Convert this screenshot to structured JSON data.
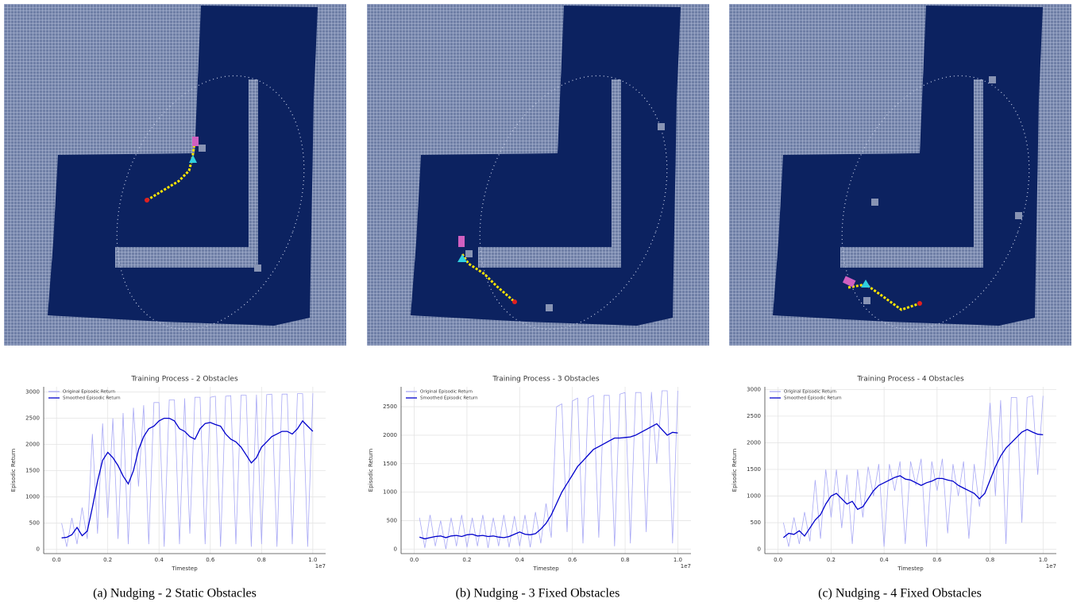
{
  "chart_data": [
    {
      "type": "line",
      "title": "Training Process - 2 Obstacles",
      "xlabel": "Timestep",
      "ylabel": "Episodic Return",
      "x_offset": "1e7",
      "caption": "(a) Nudging - 2 Static Obstacles",
      "legend": "upper left",
      "grid": true,
      "xlim": [
        -0.05,
        1.05
      ],
      "xticks": [
        {
          "value": 0,
          "label": "0.0"
        },
        0.2,
        0.4,
        0.6,
        0.8,
        {
          "value": 1,
          "label": "1.0"
        }
      ],
      "ylim": [
        -80,
        3100
      ],
      "yticks": [
        0,
        500,
        1000,
        1500,
        2000,
        2500,
        3000
      ],
      "x": [
        0.02,
        0.04,
        0.06,
        0.08,
        0.1,
        0.12,
        0.14,
        0.16,
        0.18,
        0.2,
        0.22,
        0.24,
        0.26,
        0.28,
        0.3,
        0.32,
        0.34,
        0.36,
        0.38,
        0.4,
        0.42,
        0.44,
        0.46,
        0.48,
        0.5,
        0.52,
        0.54,
        0.56,
        0.58,
        0.6,
        0.62,
        0.64,
        0.66,
        0.68,
        0.7,
        0.72,
        0.74,
        0.76,
        0.78,
        0.8,
        0.82,
        0.84,
        0.86,
        0.88,
        0.9,
        0.92,
        0.94,
        0.96,
        0.98,
        1.0
      ],
      "series": [
        {
          "name": "Original Episodic Return",
          "color": "#a9a9f5",
          "values": [
            500,
            50,
            600,
            100,
            800,
            200,
            2200,
            300,
            2400,
            600,
            2500,
            200,
            2600,
            100,
            2700,
            1200,
            2750,
            100,
            2800,
            2800,
            50,
            2850,
            2850,
            100,
            2880,
            300,
            2900,
            2900,
            100,
            2900,
            2920,
            50,
            2920,
            2930,
            100,
            2940,
            2940,
            50,
            2950,
            100,
            2950,
            2960,
            50,
            2960,
            2960,
            100,
            2970,
            2970,
            50,
            2980
          ]
        },
        {
          "name": "Smoothed Episodic Return",
          "color": "#0000cc",
          "values": [
            220,
            230,
            280,
            420,
            260,
            350,
            800,
            1300,
            1700,
            1850,
            1750,
            1600,
            1400,
            1250,
            1500,
            1900,
            2150,
            2300,
            2350,
            2450,
            2500,
            2500,
            2450,
            2300,
            2250,
            2150,
            2100,
            2300,
            2400,
            2420,
            2380,
            2350,
            2200,
            2100,
            2050,
            1950,
            1800,
            1650,
            1750,
            1950,
            2050,
            2150,
            2200,
            2250,
            2250,
            2200,
            2300,
            2450,
            2350,
            2250
          ]
        }
      ]
    },
    {
      "type": "line",
      "title": "Training Process - 3 Obstacles",
      "xlabel": "Timestep",
      "ylabel": "Episodic Return",
      "x_offset": "1e7",
      "caption": "(b) Nudging - 3 Fixed Obstacles",
      "legend": "upper left",
      "grid": true,
      "xlim": [
        -0.05,
        1.05
      ],
      "xticks": [
        {
          "value": 0,
          "label": "0.0"
        },
        0.2,
        0.4,
        0.6,
        0.8,
        {
          "value": 1,
          "label": "1.0"
        }
      ],
      "ylim": [
        -80,
        2850
      ],
      "yticks": [
        0,
        500,
        1000,
        1500,
        2000,
        2500
      ],
      "x": [
        0.02,
        0.04,
        0.06,
        0.08,
        0.1,
        0.12,
        0.14,
        0.16,
        0.18,
        0.2,
        0.22,
        0.24,
        0.26,
        0.28,
        0.3,
        0.32,
        0.34,
        0.36,
        0.38,
        0.4,
        0.42,
        0.44,
        0.46,
        0.48,
        0.5,
        0.52,
        0.54,
        0.56,
        0.58,
        0.6,
        0.62,
        0.64,
        0.66,
        0.68,
        0.7,
        0.72,
        0.74,
        0.76,
        0.78,
        0.8,
        0.82,
        0.84,
        0.86,
        0.88,
        0.9,
        0.92,
        0.94,
        0.96,
        0.98,
        1.0
      ],
      "series": [
        {
          "name": "Original Episodic Return",
          "color": "#a9a9f5",
          "values": [
            550,
            20,
            600,
            50,
            500,
            0,
            550,
            50,
            600,
            30,
            550,
            50,
            600,
            20,
            550,
            50,
            600,
            30,
            580,
            50,
            600,
            30,
            650,
            100,
            800,
            200,
            2500,
            2550,
            300,
            2600,
            2650,
            100,
            2650,
            2700,
            200,
            2700,
            2700,
            50,
            2720,
            2750,
            100,
            2750,
            2750,
            300,
            2760,
            1500,
            2780,
            2780,
            100,
            2780
          ]
        },
        {
          "name": "Smoothed Episodic Return",
          "color": "#0000cc",
          "values": [
            210,
            180,
            200,
            220,
            230,
            200,
            230,
            240,
            220,
            250,
            260,
            230,
            240,
            220,
            230,
            210,
            200,
            220,
            260,
            300,
            260,
            250,
            270,
            350,
            450,
            600,
            800,
            1000,
            1150,
            1300,
            1450,
            1550,
            1650,
            1750,
            1800,
            1850,
            1900,
            1950,
            1950,
            1960,
            1970,
            2000,
            2050,
            2100,
            2150,
            2200,
            2100,
            2000,
            2050,
            2040
          ]
        }
      ]
    },
    {
      "type": "line",
      "title": "Training Process - 4 Obstacles",
      "xlabel": "Timestep",
      "ylabel": "Episodic Return",
      "x_offset": "1e7",
      "caption": "(c) Nudging - 4 Fixed Obstacles",
      "legend": "upper left",
      "grid": true,
      "xlim": [
        -0.05,
        1.05
      ],
      "xticks": [
        {
          "value": 0,
          "label": "0.0"
        },
        0.2,
        0.4,
        0.6,
        0.8,
        {
          "value": 1,
          "label": "1.0"
        }
      ],
      "ylim": [
        -80,
        3050
      ],
      "yticks": [
        0,
        500,
        1000,
        1500,
        2000,
        2500,
        3000
      ],
      "x": [
        0.02,
        0.04,
        0.06,
        0.08,
        0.1,
        0.12,
        0.14,
        0.16,
        0.18,
        0.2,
        0.22,
        0.24,
        0.26,
        0.28,
        0.3,
        0.32,
        0.34,
        0.36,
        0.38,
        0.4,
        0.42,
        0.44,
        0.46,
        0.48,
        0.5,
        0.52,
        0.54,
        0.56,
        0.58,
        0.6,
        0.62,
        0.64,
        0.66,
        0.68,
        0.7,
        0.72,
        0.74,
        0.76,
        0.78,
        0.8,
        0.82,
        0.84,
        0.86,
        0.88,
        0.9,
        0.92,
        0.94,
        0.96,
        0.98,
        1.0
      ],
      "series": [
        {
          "name": "Original Episodic Return",
          "color": "#a9a9f5",
          "values": [
            500,
            50,
            600,
            100,
            700,
            150,
            1300,
            200,
            1500,
            600,
            1500,
            400,
            1400,
            100,
            1500,
            600,
            1550,
            1000,
            1600,
            50,
            1600,
            1100,
            1650,
            100,
            1650,
            1200,
            1700,
            50,
            1650,
            1100,
            1700,
            300,
            1600,
            1000,
            1650,
            200,
            1600,
            800,
            1500,
            2750,
            1000,
            2800,
            100,
            2850,
            2850,
            500,
            2850,
            2880,
            1400,
            2880
          ]
        },
        {
          "name": "Smoothed Episodic Return",
          "color": "#0000cc",
          "values": [
            220,
            300,
            280,
            350,
            250,
            400,
            550,
            650,
            850,
            1000,
            1050,
            950,
            850,
            900,
            750,
            800,
            950,
            1100,
            1200,
            1250,
            1300,
            1350,
            1380,
            1320,
            1300,
            1250,
            1200,
            1250,
            1280,
            1330,
            1330,
            1300,
            1280,
            1200,
            1150,
            1100,
            1050,
            950,
            1050,
            1300,
            1550,
            1750,
            1900,
            2000,
            2100,
            2200,
            2250,
            2200,
            2160,
            2150
          ]
        }
      ]
    }
  ]
}
